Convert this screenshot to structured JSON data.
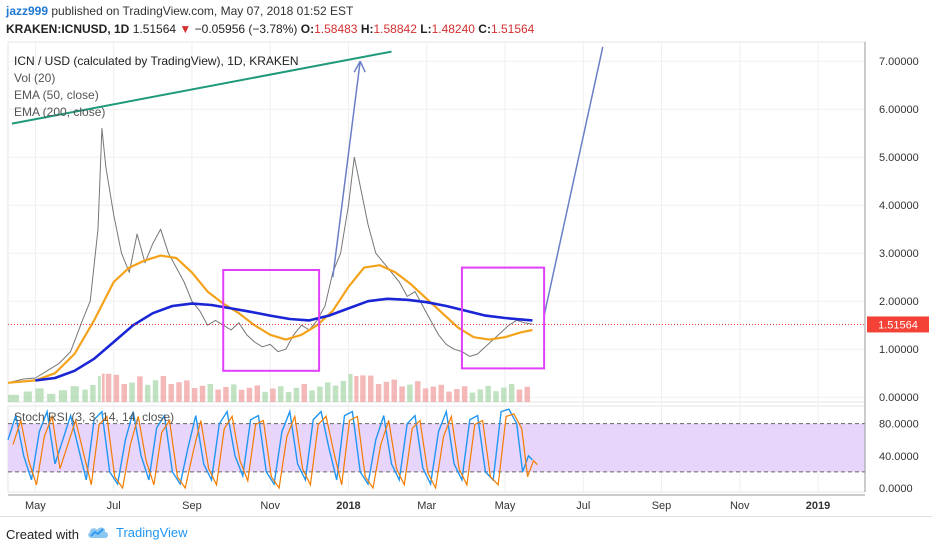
{
  "header": {
    "author": "jazz999",
    "published_text": "published on TradingView.com, May 07, 2018 01:52 EST"
  },
  "ohlc": {
    "symbol": "KRAKEN:ICNUSD, 1D",
    "last": "1.51564",
    "change_arrow": "▼",
    "change": "−0.05956 (−3.78%)",
    "open_label": "O:",
    "open": "1.58483",
    "high_label": "H:",
    "high": "1.58842",
    "low_label": "L:",
    "low": "1.48240",
    "close_label": "C:",
    "close": "1.51564"
  },
  "legend": {
    "title": "ICN / USD (calculated by TradingView), 1D, KRAKEN",
    "vol": "Vol (20)",
    "ema50": "EMA (50, close)",
    "ema200": "EMA (200, close)"
  },
  "stoch_legend": "Stoch RSI (3, 3, 14, 14, close)",
  "footer": {
    "created_with": "Created with",
    "brand": "TradingView"
  },
  "chart_data": {
    "type": "line",
    "price_axis": {
      "ticks": [
        0,
        1,
        2,
        3,
        4,
        5,
        6,
        7
      ],
      "tick_labels": [
        "0.00000",
        "1.00000",
        "2.00000",
        "3.00000",
        "4.00000",
        "5.00000",
        "6.00000",
        "7.00000"
      ],
      "ylim": [
        -0.1,
        7.4
      ],
      "current_price": 1.51564,
      "current_price_label": "1.51564"
    },
    "x_axis": {
      "tick_labels": [
        "May",
        "Jul",
        "Sep",
        "Nov",
        "2018",
        "Mar",
        "May",
        "Jul",
        "Sep",
        "Nov",
        "2019"
      ],
      "tick_months": [
        0,
        2,
        4,
        6,
        8,
        10,
        12,
        14,
        16,
        18,
        20
      ],
      "xlim": [
        -0.7,
        21.2
      ]
    },
    "price_series": [
      {
        "m": -0.7,
        "v": 0.3
      },
      {
        "m": -0.3,
        "v": 0.38
      },
      {
        "m": 0.0,
        "v": 0.4
      },
      {
        "m": 0.3,
        "v": 0.55
      },
      {
        "m": 0.6,
        "v": 0.7
      },
      {
        "m": 0.9,
        "v": 0.95
      },
      {
        "m": 1.2,
        "v": 1.6
      },
      {
        "m": 1.4,
        "v": 2.0
      },
      {
        "m": 1.6,
        "v": 3.5
      },
      {
        "m": 1.7,
        "v": 5.6
      },
      {
        "m": 1.8,
        "v": 4.8
      },
      {
        "m": 2.0,
        "v": 3.8
      },
      {
        "m": 2.2,
        "v": 3.0
      },
      {
        "m": 2.4,
        "v": 2.6
      },
      {
        "m": 2.6,
        "v": 3.4
      },
      {
        "m": 2.8,
        "v": 2.8
      },
      {
        "m": 3.0,
        "v": 3.2
      },
      {
        "m": 3.2,
        "v": 3.5
      },
      {
        "m": 3.4,
        "v": 3.0
      },
      {
        "m": 3.6,
        "v": 2.7
      },
      {
        "m": 3.8,
        "v": 2.4
      },
      {
        "m": 4.0,
        "v": 2.0
      },
      {
        "m": 4.2,
        "v": 1.8
      },
      {
        "m": 4.4,
        "v": 1.5
      },
      {
        "m": 4.6,
        "v": 1.6
      },
      {
        "m": 4.8,
        "v": 1.5
      },
      {
        "m": 5.0,
        "v": 1.4
      },
      {
        "m": 5.2,
        "v": 1.55
      },
      {
        "m": 5.4,
        "v": 1.3
      },
      {
        "m": 5.6,
        "v": 1.15
      },
      {
        "m": 5.8,
        "v": 1.05
      },
      {
        "m": 6.0,
        "v": 1.1
      },
      {
        "m": 6.2,
        "v": 0.95
      },
      {
        "m": 6.4,
        "v": 1.0
      },
      {
        "m": 6.6,
        "v": 1.3
      },
      {
        "m": 6.8,
        "v": 1.5
      },
      {
        "m": 7.0,
        "v": 1.4
      },
      {
        "m": 7.2,
        "v": 1.6
      },
      {
        "m": 7.4,
        "v": 1.9
      },
      {
        "m": 7.6,
        "v": 2.6
      },
      {
        "m": 7.8,
        "v": 3.0
      },
      {
        "m": 8.0,
        "v": 4.0
      },
      {
        "m": 8.15,
        "v": 5.0
      },
      {
        "m": 8.3,
        "v": 4.4
      },
      {
        "m": 8.5,
        "v": 3.6
      },
      {
        "m": 8.7,
        "v": 3.0
      },
      {
        "m": 8.9,
        "v": 2.8
      },
      {
        "m": 9.1,
        "v": 2.6
      },
      {
        "m": 9.3,
        "v": 2.4
      },
      {
        "m": 9.5,
        "v": 2.1
      },
      {
        "m": 9.7,
        "v": 2.2
      },
      {
        "m": 9.9,
        "v": 1.9
      },
      {
        "m": 10.1,
        "v": 1.6
      },
      {
        "m": 10.3,
        "v": 1.3
      },
      {
        "m": 10.5,
        "v": 1.1
      },
      {
        "m": 10.7,
        "v": 1.0
      },
      {
        "m": 10.9,
        "v": 0.95
      },
      {
        "m": 11.1,
        "v": 0.85
      },
      {
        "m": 11.3,
        "v": 0.9
      },
      {
        "m": 11.5,
        "v": 1.05
      },
      {
        "m": 11.7,
        "v": 1.2
      },
      {
        "m": 11.9,
        "v": 1.35
      },
      {
        "m": 12.1,
        "v": 1.5
      },
      {
        "m": 12.3,
        "v": 1.6
      },
      {
        "m": 12.5,
        "v": 1.55
      },
      {
        "m": 12.7,
        "v": 1.52
      }
    ],
    "ema50_series": [
      {
        "m": -0.7,
        "v": 0.3
      },
      {
        "m": 0.0,
        "v": 0.35
      },
      {
        "m": 0.5,
        "v": 0.5
      },
      {
        "m": 1.0,
        "v": 0.9
      },
      {
        "m": 1.5,
        "v": 1.6
      },
      {
        "m": 2.0,
        "v": 2.4
      },
      {
        "m": 2.4,
        "v": 2.7
      },
      {
        "m": 2.8,
        "v": 2.85
      },
      {
        "m": 3.2,
        "v": 2.95
      },
      {
        "m": 3.6,
        "v": 2.9
      },
      {
        "m": 4.0,
        "v": 2.6
      },
      {
        "m": 4.4,
        "v": 2.2
      },
      {
        "m": 4.8,
        "v": 1.95
      },
      {
        "m": 5.2,
        "v": 1.75
      },
      {
        "m": 5.6,
        "v": 1.5
      },
      {
        "m": 6.0,
        "v": 1.3
      },
      {
        "m": 6.4,
        "v": 1.2
      },
      {
        "m": 6.8,
        "v": 1.3
      },
      {
        "m": 7.2,
        "v": 1.5
      },
      {
        "m": 7.6,
        "v": 1.8
      },
      {
        "m": 8.0,
        "v": 2.3
      },
      {
        "m": 8.4,
        "v": 2.7
      },
      {
        "m": 8.8,
        "v": 2.75
      },
      {
        "m": 9.2,
        "v": 2.6
      },
      {
        "m": 9.6,
        "v": 2.35
      },
      {
        "m": 10.0,
        "v": 2.05
      },
      {
        "m": 10.4,
        "v": 1.75
      },
      {
        "m": 10.8,
        "v": 1.45
      },
      {
        "m": 11.2,
        "v": 1.25
      },
      {
        "m": 11.6,
        "v": 1.2
      },
      {
        "m": 12.0,
        "v": 1.25
      },
      {
        "m": 12.4,
        "v": 1.35
      },
      {
        "m": 12.7,
        "v": 1.4
      }
    ],
    "ema200_series": [
      {
        "m": 0.0,
        "v": 0.35
      },
      {
        "m": 0.5,
        "v": 0.4
      },
      {
        "m": 1.0,
        "v": 0.55
      },
      {
        "m": 1.5,
        "v": 0.8
      },
      {
        "m": 2.0,
        "v": 1.15
      },
      {
        "m": 2.5,
        "v": 1.5
      },
      {
        "m": 3.0,
        "v": 1.75
      },
      {
        "m": 3.5,
        "v": 1.9
      },
      {
        "m": 4.0,
        "v": 1.95
      },
      {
        "m": 4.5,
        "v": 1.92
      },
      {
        "m": 5.0,
        "v": 1.85
      },
      {
        "m": 5.5,
        "v": 1.78
      },
      {
        "m": 6.0,
        "v": 1.7
      },
      {
        "m": 6.5,
        "v": 1.63
      },
      {
        "m": 7.0,
        "v": 1.6
      },
      {
        "m": 7.5,
        "v": 1.7
      },
      {
        "m": 8.0,
        "v": 1.85
      },
      {
        "m": 8.5,
        "v": 2.0
      },
      {
        "m": 9.0,
        "v": 2.05
      },
      {
        "m": 9.5,
        "v": 2.03
      },
      {
        "m": 10.0,
        "v": 1.98
      },
      {
        "m": 10.5,
        "v": 1.9
      },
      {
        "m": 11.0,
        "v": 1.8
      },
      {
        "m": 11.5,
        "v": 1.7
      },
      {
        "m": 12.0,
        "v": 1.65
      },
      {
        "m": 12.4,
        "v": 1.62
      },
      {
        "m": 12.7,
        "v": 1.6
      }
    ],
    "trendline": {
      "from": {
        "m": -0.6,
        "v": 5.7
      },
      "to": {
        "m": 9.1,
        "v": 7.2
      }
    },
    "arrow": {
      "from": {
        "m": 7.6,
        "v": 2.5
      },
      "to": {
        "m": 8.3,
        "v": 7.0
      }
    },
    "projection_line": {
      "from": {
        "m": 13.0,
        "v": 1.7
      },
      "to": {
        "m": 14.5,
        "v": 7.3
      }
    },
    "boxes": [
      {
        "m0": 4.8,
        "m1": 7.25,
        "v0": 0.55,
        "v1": 2.65
      },
      {
        "m0": 10.9,
        "m1": 13.0,
        "v0": 0.6,
        "v1": 2.7
      }
    ],
    "stoch_rsi": {
      "ticks": [
        0,
        40,
        80
      ],
      "tick_labels": [
        "0.0000",
        "40.0000",
        "80.0000"
      ],
      "band": [
        20,
        80
      ],
      "ylim": [
        -5,
        102
      ],
      "k": [
        {
          "m": -0.7,
          "v": 60
        },
        {
          "m": -0.5,
          "v": 90
        },
        {
          "m": -0.3,
          "v": 40
        },
        {
          "m": -0.1,
          "v": 10
        },
        {
          "m": 0.1,
          "v": 70
        },
        {
          "m": 0.3,
          "v": 95
        },
        {
          "m": 0.5,
          "v": 30
        },
        {
          "m": 0.7,
          "v": 60
        },
        {
          "m": 0.9,
          "v": 90
        },
        {
          "m": 1.1,
          "v": 50
        },
        {
          "m": 1.3,
          "v": 10
        },
        {
          "m": 1.5,
          "v": 85
        },
        {
          "m": 1.7,
          "v": 95
        },
        {
          "m": 1.9,
          "v": 20
        },
        {
          "m": 2.1,
          "v": 5
        },
        {
          "m": 2.3,
          "v": 60
        },
        {
          "m": 2.5,
          "v": 95
        },
        {
          "m": 2.7,
          "v": 40
        },
        {
          "m": 2.9,
          "v": 10
        },
        {
          "m": 3.1,
          "v": 75
        },
        {
          "m": 3.3,
          "v": 90
        },
        {
          "m": 3.5,
          "v": 20
        },
        {
          "m": 3.7,
          "v": 5
        },
        {
          "m": 3.9,
          "v": 50
        },
        {
          "m": 4.1,
          "v": 90
        },
        {
          "m": 4.3,
          "v": 30
        },
        {
          "m": 4.5,
          "v": 10
        },
        {
          "m": 4.7,
          "v": 80
        },
        {
          "m": 4.9,
          "v": 95
        },
        {
          "m": 5.1,
          "v": 40
        },
        {
          "m": 5.3,
          "v": 15
        },
        {
          "m": 5.5,
          "v": 85
        },
        {
          "m": 5.7,
          "v": 90
        },
        {
          "m": 5.9,
          "v": 20
        },
        {
          "m": 6.1,
          "v": 5
        },
        {
          "m": 6.3,
          "v": 70
        },
        {
          "m": 6.5,
          "v": 95
        },
        {
          "m": 6.7,
          "v": 30
        },
        {
          "m": 6.9,
          "v": 10
        },
        {
          "m": 7.1,
          "v": 85
        },
        {
          "m": 7.3,
          "v": 95
        },
        {
          "m": 7.5,
          "v": 50
        },
        {
          "m": 7.7,
          "v": 10
        },
        {
          "m": 7.9,
          "v": 90
        },
        {
          "m": 8.1,
          "v": 95
        },
        {
          "m": 8.3,
          "v": 20
        },
        {
          "m": 8.5,
          "v": 5
        },
        {
          "m": 8.7,
          "v": 60
        },
        {
          "m": 8.9,
          "v": 90
        },
        {
          "m": 9.1,
          "v": 30
        },
        {
          "m": 9.3,
          "v": 10
        },
        {
          "m": 9.5,
          "v": 80
        },
        {
          "m": 9.7,
          "v": 90
        },
        {
          "m": 9.9,
          "v": 25
        },
        {
          "m": 10.1,
          "v": 5
        },
        {
          "m": 10.3,
          "v": 70
        },
        {
          "m": 10.5,
          "v": 95
        },
        {
          "m": 10.7,
          "v": 30
        },
        {
          "m": 10.9,
          "v": 10
        },
        {
          "m": 11.1,
          "v": 85
        },
        {
          "m": 11.3,
          "v": 90
        },
        {
          "m": 11.5,
          "v": 20
        },
        {
          "m": 11.7,
          "v": 10
        },
        {
          "m": 11.9,
          "v": 95
        },
        {
          "m": 12.1,
          "v": 98
        },
        {
          "m": 12.3,
          "v": 80
        },
        {
          "m": 12.45,
          "v": 20
        },
        {
          "m": 12.6,
          "v": 40
        },
        {
          "m": 12.7,
          "v": 35
        }
      ]
    }
  }
}
